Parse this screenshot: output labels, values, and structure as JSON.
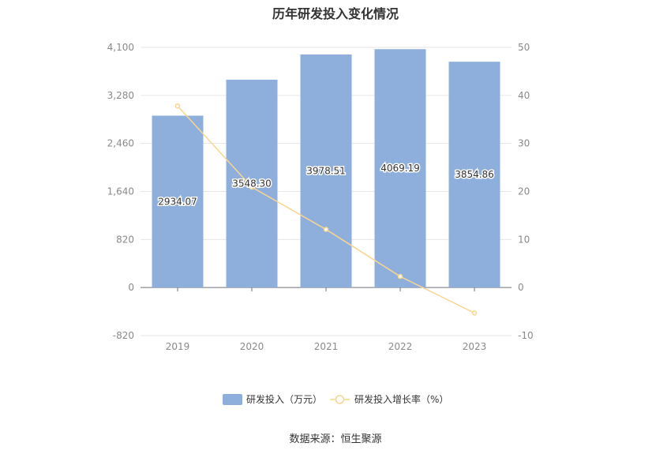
{
  "chart_data": {
    "type": "bar",
    "title": "历年研发投入变化情况",
    "categories": [
      "2019",
      "2020",
      "2021",
      "2022",
      "2023"
    ],
    "series": [
      {
        "name": "研发投入（万元）",
        "type": "bar",
        "axis": "left",
        "color": "#8eaedc",
        "values": [
          2934.07,
          3548.3,
          3978.51,
          4069.19,
          3854.86
        ],
        "labels": [
          "2934.07",
          "3548.30",
          "3978.51",
          "4069.19",
          "3854.86"
        ]
      },
      {
        "name": "研发投入增长率（%）",
        "type": "line",
        "axis": "right",
        "color": "#f9d58f",
        "values": [
          37.8,
          20.9,
          12.1,
          2.3,
          -5.3
        ]
      }
    ],
    "y_left": {
      "min": -820,
      "max": 4100,
      "ticks": [
        "-820",
        "0",
        "820",
        "1,640",
        "2,460",
        "3,280",
        "4,100"
      ],
      "tick_values": [
        -820,
        0,
        820,
        1640,
        2460,
        3280,
        4100
      ]
    },
    "y_right": {
      "min": -10,
      "max": 50,
      "ticks": [
        "-10",
        "0",
        "10",
        "20",
        "30",
        "40",
        "50"
      ],
      "tick_values": [
        -10,
        0,
        10,
        20,
        30,
        40,
        50
      ]
    },
    "grid": true,
    "legend": "bottom-center"
  },
  "source": "数据来源：恒生聚源"
}
